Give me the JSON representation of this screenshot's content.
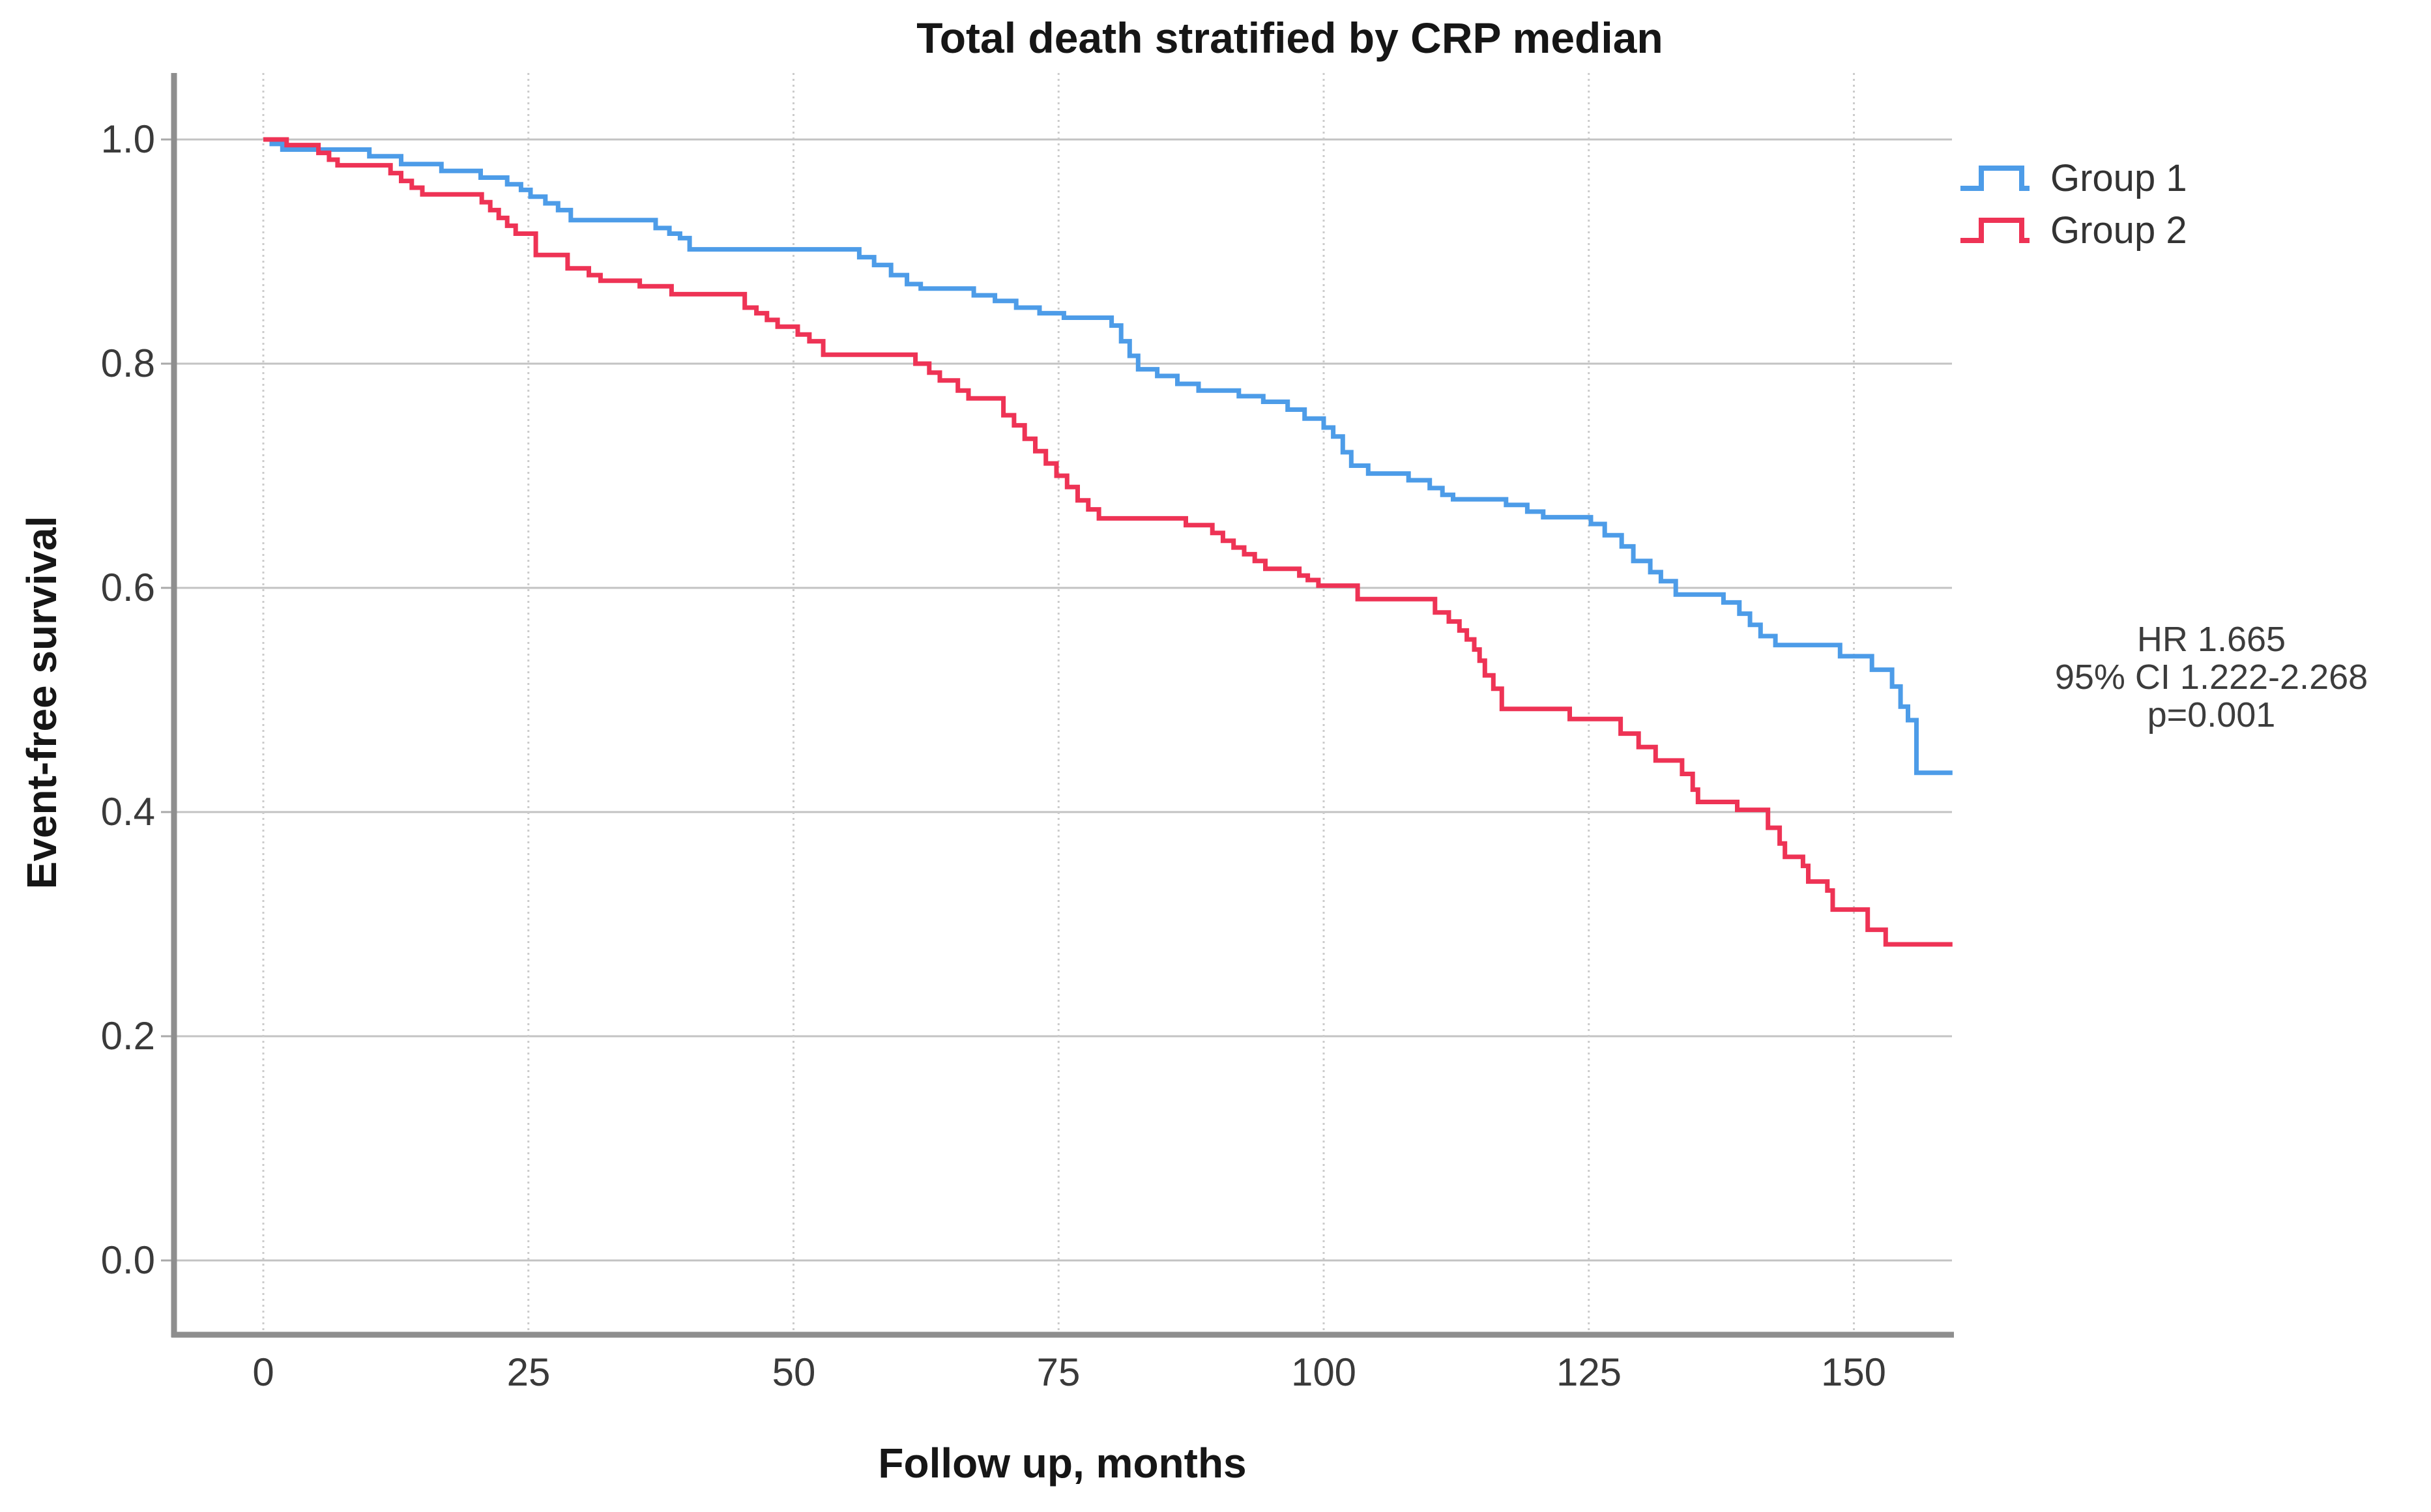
{
  "title": "Total death stratified by CRP median",
  "axes": {
    "x_label": "Follow up, months",
    "y_label": "Event-free survival",
    "x_ticks": [
      "0",
      "25",
      "50",
      "75",
      "100",
      "125",
      "150"
    ],
    "y_ticks": [
      "1.0",
      "0.8",
      "0.6",
      "0.4",
      "0.2",
      "0.0"
    ]
  },
  "legend": [
    {
      "label": "Group 1",
      "color": "#4d9ce8"
    },
    {
      "label": "Group 2",
      "color": "#ee3355"
    }
  ],
  "annotation": {
    "line1": "HR 1.665",
    "line2": "95% CI 1.222-2.268",
    "line3": "p=0.001"
  },
  "colors": {
    "group1": "#4d9ce8",
    "group2": "#ee3355",
    "gridline": "#c3c3c3",
    "axis": "#8e8e8e",
    "text": "#161616"
  },
  "chart_data": {
    "type": "line",
    "subtype": "kaplan-meier-step-curves",
    "title": "Total death stratified by CRP median",
    "xlabel": "Follow up, months",
    "ylabel": "Event-free survival",
    "x_tick_values": [
      0,
      25,
      50,
      75,
      100,
      125,
      150
    ],
    "y_tick_values": [
      1.0,
      0.8,
      0.6,
      0.4,
      0.2,
      0.0
    ],
    "xlim": [
      -8.4,
      159.3
    ],
    "ylim": [
      -0.062,
      1.063
    ],
    "x_max_data": 159.3,
    "grid": true,
    "legend_position": "top-right",
    "annotation_lines": [
      "HR 1.665",
      "95% CI 1.222-2.268",
      "p=0.001"
    ],
    "series": [
      {
        "name": "Group 1",
        "color": "#4d9ce8",
        "final_value": 0.435,
        "points": [
          [
            0,
            1.0
          ],
          [
            0.8,
            0.996
          ],
          [
            1.8,
            0.991
          ],
          [
            10,
            0.985
          ],
          [
            13,
            0.978
          ],
          [
            16.8,
            0.972
          ],
          [
            20.5,
            0.966
          ],
          [
            23,
            0.96
          ],
          [
            24.3,
            0.955
          ],
          [
            25.2,
            0.949
          ],
          [
            26.6,
            0.943
          ],
          [
            27.8,
            0.937
          ],
          [
            29,
            0.928
          ],
          [
            37,
            0.921
          ],
          [
            38.3,
            0.916
          ],
          [
            39.3,
            0.912
          ],
          [
            40.2,
            0.902
          ],
          [
            56.2,
            0.895
          ],
          [
            57.6,
            0.888
          ],
          [
            59.2,
            0.879
          ],
          [
            60.7,
            0.871
          ],
          [
            62,
            0.867
          ],
          [
            67,
            0.861
          ],
          [
            69,
            0.856
          ],
          [
            71,
            0.85
          ],
          [
            73.2,
            0.845
          ],
          [
            75.5,
            0.841
          ],
          [
            80,
            0.834
          ],
          [
            80.9,
            0.82
          ],
          [
            81.7,
            0.807
          ],
          [
            82.5,
            0.795
          ],
          [
            84.3,
            0.789
          ],
          [
            86.2,
            0.782
          ],
          [
            88.2,
            0.776
          ],
          [
            92,
            0.771
          ],
          [
            94.3,
            0.766
          ],
          [
            96.6,
            0.759
          ],
          [
            98.2,
            0.751
          ],
          [
            100,
            0.743
          ],
          [
            100.9,
            0.735
          ],
          [
            101.8,
            0.721
          ],
          [
            102.6,
            0.709
          ],
          [
            104.2,
            0.702
          ],
          [
            108,
            0.696
          ],
          [
            110,
            0.689
          ],
          [
            111.2,
            0.683
          ],
          [
            112.2,
            0.679
          ],
          [
            117.2,
            0.674
          ],
          [
            119.2,
            0.668
          ],
          [
            120.7,
            0.663
          ],
          [
            125.2,
            0.657
          ],
          [
            126.5,
            0.647
          ],
          [
            128.1,
            0.637
          ],
          [
            129.2,
            0.624
          ],
          [
            130.8,
            0.614
          ],
          [
            131.8,
            0.606
          ],
          [
            133.2,
            0.594
          ],
          [
            137.7,
            0.587
          ],
          [
            139.2,
            0.577
          ],
          [
            140.2,
            0.567
          ],
          [
            141.2,
            0.557
          ],
          [
            142.6,
            0.549
          ],
          [
            148.7,
            0.539
          ],
          [
            151.7,
            0.527
          ],
          [
            153.6,
            0.512
          ],
          [
            154.4,
            0.494
          ],
          [
            155.1,
            0.482
          ],
          [
            155.9,
            0.435
          ]
        ]
      },
      {
        "name": "Group 2",
        "color": "#ee3355",
        "final_value": 0.282,
        "points": [
          [
            0,
            1.0
          ],
          [
            2.2,
            0.995
          ],
          [
            5.2,
            0.988
          ],
          [
            6.2,
            0.982
          ],
          [
            7,
            0.977
          ],
          [
            12,
            0.97
          ],
          [
            13,
            0.963
          ],
          [
            14,
            0.957
          ],
          [
            15,
            0.951
          ],
          [
            20.6,
            0.944
          ],
          [
            21.4,
            0.937
          ],
          [
            22.2,
            0.93
          ],
          [
            23,
            0.923
          ],
          [
            23.8,
            0.916
          ],
          [
            25.7,
            0.897
          ],
          [
            28.7,
            0.885
          ],
          [
            30.7,
            0.879
          ],
          [
            31.8,
            0.874
          ],
          [
            35.5,
            0.869
          ],
          [
            38.5,
            0.862
          ],
          [
            45.4,
            0.85
          ],
          [
            46.5,
            0.845
          ],
          [
            47.5,
            0.839
          ],
          [
            48.5,
            0.833
          ],
          [
            50.4,
            0.826
          ],
          [
            51.5,
            0.82
          ],
          [
            52.8,
            0.808
          ],
          [
            61.5,
            0.8
          ],
          [
            62.8,
            0.792
          ],
          [
            63.8,
            0.785
          ],
          [
            65.5,
            0.776
          ],
          [
            66.5,
            0.769
          ],
          [
            69.8,
            0.754
          ],
          [
            70.8,
            0.745
          ],
          [
            71.8,
            0.733
          ],
          [
            72.8,
            0.722
          ],
          [
            73.8,
            0.711
          ],
          [
            74.8,
            0.7
          ],
          [
            75.8,
            0.69
          ],
          [
            76.8,
            0.678
          ],
          [
            77.8,
            0.67
          ],
          [
            78.8,
            0.662
          ],
          [
            87,
            0.656
          ],
          [
            89.5,
            0.649
          ],
          [
            90.5,
            0.642
          ],
          [
            91.5,
            0.636
          ],
          [
            92.5,
            0.63
          ],
          [
            93.5,
            0.624
          ],
          [
            94.5,
            0.617
          ],
          [
            97.7,
            0.611
          ],
          [
            98.5,
            0.607
          ],
          [
            99.5,
            0.602
          ],
          [
            103.2,
            0.59
          ],
          [
            110.5,
            0.578
          ],
          [
            111.8,
            0.57
          ],
          [
            112.8,
            0.562
          ],
          [
            113.5,
            0.554
          ],
          [
            114.2,
            0.545
          ],
          [
            114.7,
            0.535
          ],
          [
            115.2,
            0.522
          ],
          [
            116,
            0.51
          ],
          [
            116.8,
            0.492
          ],
          [
            123.2,
            0.483
          ],
          [
            128,
            0.47
          ],
          [
            129.7,
            0.458
          ],
          [
            131.3,
            0.446
          ],
          [
            133.8,
            0.434
          ],
          [
            134.8,
            0.42
          ],
          [
            135.3,
            0.409
          ],
          [
            139,
            0.402
          ],
          [
            141.9,
            0.386
          ],
          [
            143,
            0.372
          ],
          [
            143.5,
            0.36
          ],
          [
            145.2,
            0.352
          ],
          [
            145.7,
            0.338
          ],
          [
            147.5,
            0.33
          ],
          [
            148,
            0.313
          ],
          [
            151.3,
            0.295
          ],
          [
            153,
            0.282
          ]
        ]
      }
    ]
  }
}
